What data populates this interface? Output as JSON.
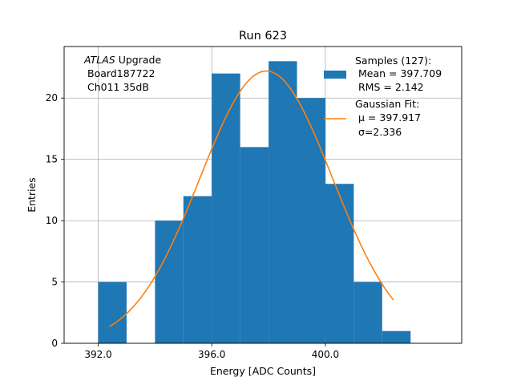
{
  "chart_data": {
    "type": "histogram",
    "title": "Run 623",
    "xlabel": "Energy [ADC Counts]",
    "ylabel": "Entries",
    "xlim": [
      390.8,
      404.8
    ],
    "ylim": [
      0,
      24.2
    ],
    "grid": true,
    "xticks": [
      392.0,
      396.0,
      400.0
    ],
    "xtick_labels": [
      "392.0",
      "396.0",
      "400.0"
    ],
    "yticks": [
      0,
      5,
      10,
      15,
      20
    ],
    "ytick_labels": [
      "0",
      "5",
      "10",
      "15",
      "20"
    ],
    "bins": [
      {
        "lo": 392,
        "hi": 393,
        "count": 5
      },
      {
        "lo": 393,
        "hi": 394,
        "count": 0
      },
      {
        "lo": 394,
        "hi": 395,
        "count": 10
      },
      {
        "lo": 395,
        "hi": 396,
        "count": 12
      },
      {
        "lo": 396,
        "hi": 397,
        "count": 22
      },
      {
        "lo": 397,
        "hi": 398,
        "count": 16
      },
      {
        "lo": 398,
        "hi": 399,
        "count": 23
      },
      {
        "lo": 399,
        "hi": 400,
        "count": 20
      },
      {
        "lo": 400,
        "hi": 401,
        "count": 13
      },
      {
        "lo": 401,
        "hi": 402,
        "count": 5
      },
      {
        "lo": 402,
        "hi": 403,
        "count": 1
      }
    ],
    "fit": {
      "type": "gaussian",
      "amplitude": 22.2,
      "mu": 397.917,
      "sigma": 2.336,
      "x_range": [
        392.4,
        402.4
      ]
    },
    "bar_color": "#1f77b4",
    "fit_color": "#ff7f0e",
    "annotation": {
      "line1_italic": "ATLAS",
      "line1_rest": " Upgrade",
      "line2": "Board187722",
      "line3": "Ch011 35dB"
    },
    "legend": {
      "position": "upper-right",
      "samples": {
        "line1": "Samples (127):",
        "line2": "Mean = 397.709",
        "line3": "RMS = 2.142"
      },
      "fit": {
        "line1": "Gaussian Fit:",
        "line2": "μ = 397.917",
        "line3": "σ=2.336"
      }
    }
  }
}
